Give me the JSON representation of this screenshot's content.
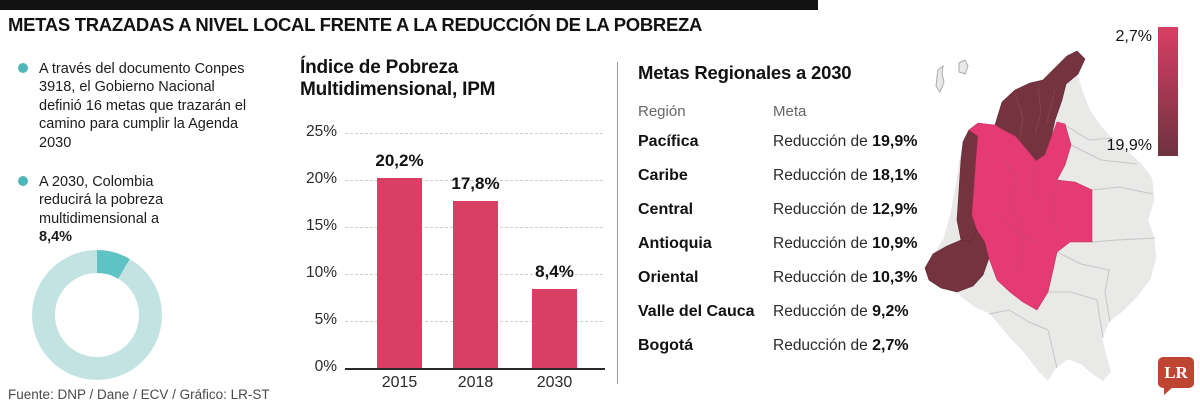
{
  "header": {
    "title": "METAS TRAZADAS A NIVEL LOCAL FRENTE A LA REDUCCIÓN DE LA POBREZA"
  },
  "intro": {
    "bullet_color": "#4fb6b8",
    "bullets": [
      {
        "text": "A través del documento Conpes 3918, el Gobierno Nacional definió 16 metas que trazarán el camino para cumplir la Agenda 2030",
        "bold": ""
      },
      {
        "text": "A 2030, Colombia reducirá la pobreza multidimensional a ",
        "bold": "8,4%"
      }
    ]
  },
  "chart_data": [
    {
      "type": "bar",
      "title": "Índice de Pobreza Multidimensional, IPM",
      "categories": [
        "2015",
        "2018",
        "2030"
      ],
      "values": [
        20.2,
        17.8,
        8.4
      ],
      "value_labels": [
        "20,2%",
        "17,8%",
        "8,4%"
      ],
      "xlabel": "",
      "ylabel": "",
      "ylim": [
        0,
        25
      ],
      "ytick_step": 5,
      "ytick_labels": [
        "0%",
        "5%",
        "10%",
        "15%",
        "20%",
        "25%"
      ],
      "grid": "dashed-horizontal",
      "bar_color": "#d93e64"
    },
    {
      "type": "pie",
      "donut": true,
      "title": "",
      "slices": [
        {
          "label": "Pobreza multidimensional a 2030",
          "value": 8.4,
          "color": "#5fc3c4"
        },
        {
          "label": "Resto",
          "value": 91.6,
          "color": "#c3e3e3"
        }
      ]
    },
    {
      "type": "table",
      "title": "Metas Regionales a 2030",
      "columns": [
        "Región",
        "Meta"
      ],
      "rows": [
        [
          "Pacífica",
          "Reducción de 19,9%"
        ],
        [
          "Caribe",
          "Reducción de 18,1%"
        ],
        [
          "Central",
          "Reducción de 12,9%"
        ],
        [
          "Antioquia",
          "Reducción de 10,9%"
        ],
        [
          "Oriental",
          "Reducción de 10,3%"
        ],
        [
          "Valle del Cauca",
          "Reducción de 9,2%"
        ],
        [
          "Bogotá",
          "Reducción de 2,7%"
        ]
      ]
    },
    {
      "type": "heatmap",
      "title": "Mapa coroplético de Colombia: meta de reducción por región",
      "legend": {
        "top_label": "2,7%",
        "bottom_label": "19,9%"
      }
    }
  ],
  "regional": {
    "title": "Metas Regionales a 2030",
    "col_region": "Región",
    "col_meta": "Meta",
    "meta_prefix": "Reducción de",
    "rows": [
      {
        "region": "Pacífica",
        "value": "19,9%"
      },
      {
        "region": "Caribe",
        "value": "18,1%"
      },
      {
        "region": "Central",
        "value": "12,9%"
      },
      {
        "region": "Antioquia",
        "value": "10,9%"
      },
      {
        "region": "Oriental",
        "value": "10,3%"
      },
      {
        "region": "Valle del Cauca",
        "value": "9,2%"
      },
      {
        "region": "Bogotá",
        "value": "2,7%"
      }
    ]
  },
  "map": {
    "legend_top": "2,7%",
    "legend_bottom": "19,9%",
    "color_gradient_top": "#d93e64",
    "color_gradient_bottom": "#6e3340",
    "color_pink": "#e53a74",
    "color_dark": "#74333f",
    "color_nodata": "#e9e9e8"
  },
  "footer": {
    "source": "Fuente: DNP / Dane / ECV / Gráfico: LR-ST"
  },
  "logo": {
    "text": "LR",
    "color": "#bf4533"
  }
}
